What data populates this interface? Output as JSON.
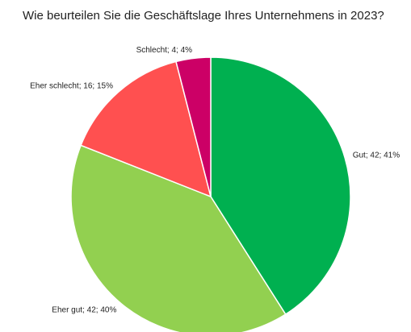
{
  "chart_data": {
    "type": "pie",
    "title": "Wie beurteilen Sie die Geschäftslage Ihres Unternehmens in 2023?",
    "categories": [
      "Gut",
      "Eher gut",
      "Eher schlecht",
      "Schlecht"
    ],
    "values": [
      41,
      40,
      15,
      4
    ],
    "value_labels": [
      "Gut; 42; 41%",
      "Eher gut; 42; 40%",
      "Eher schlecht; 16; 15%",
      "Schlecht; 4; 4%"
    ],
    "colors": [
      "#00b050",
      "#92d050",
      "#ff5050",
      "#cc0066"
    ]
  }
}
